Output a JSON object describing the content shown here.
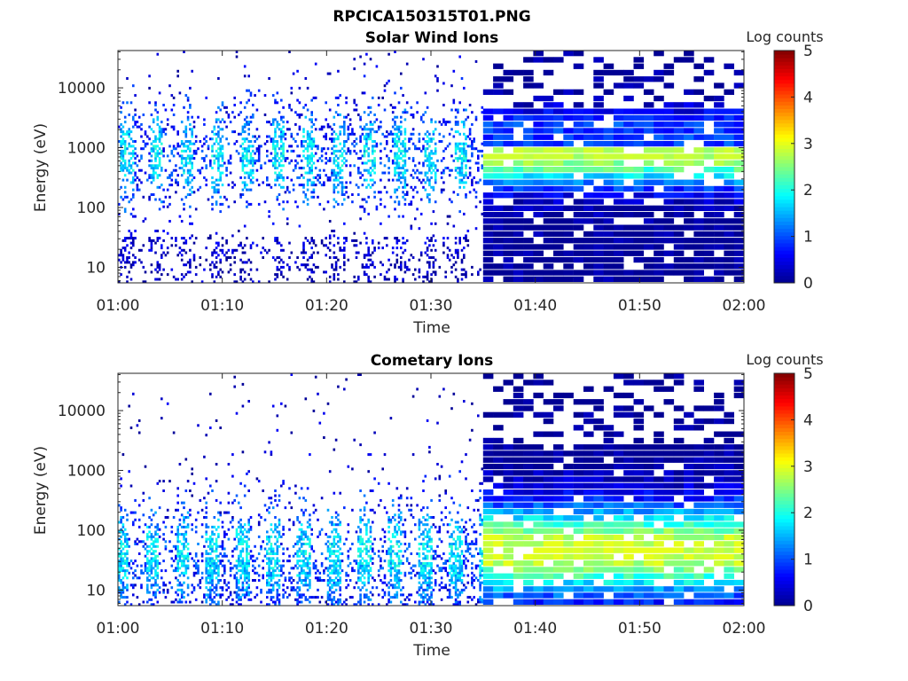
{
  "figure_title": "RPCICA150315T01.PNG",
  "colors": {
    "colormap": [
      "#00008f",
      "#0000ff",
      "#0080ff",
      "#00ffff",
      "#80ff80",
      "#ffff00",
      "#ff8000",
      "#ff0000",
      "#800000"
    ],
    "axis": "#262626",
    "background": "#ffffff"
  },
  "chart_data": [
    {
      "type": "heatmap",
      "title": "Solar Wind Ions",
      "xlabel": "Time",
      "ylabel": "Energy (eV)",
      "x_ticks": [
        "01:00",
        "01:10",
        "01:20",
        "01:30",
        "01:40",
        "01:50",
        "02:00"
      ],
      "xlim": [
        "01:00",
        "02:00"
      ],
      "y_scale": "log",
      "y_ticks": [
        10,
        100,
        1000,
        10000
      ],
      "y_tick_labels": [
        "10",
        "100",
        "1000",
        "10000"
      ],
      "ylim": [
        5.5,
        42000
      ],
      "colorbar": {
        "label": "Log counts",
        "range": [
          0,
          5
        ],
        "ticks": [
          0,
          1,
          2,
          3,
          4,
          5
        ]
      },
      "features": {
        "sparse_until": "01:35",
        "dense_from": "01:35",
        "peak_energy_eV": 700,
        "max_log_counts": 2.9
      }
    },
    {
      "type": "heatmap",
      "title": "Cometary Ions",
      "xlabel": "Time",
      "ylabel": "Energy (eV)",
      "x_ticks": [
        "01:00",
        "01:10",
        "01:20",
        "01:30",
        "01:40",
        "01:50",
        "02:00"
      ],
      "xlim": [
        "01:00",
        "02:00"
      ],
      "y_scale": "log",
      "y_ticks": [
        10,
        100,
        1000,
        10000
      ],
      "y_tick_labels": [
        "10",
        "100",
        "1000",
        "10000"
      ],
      "ylim": [
        5.5,
        42000
      ],
      "colorbar": {
        "label": "Log counts",
        "range": [
          0,
          5
        ],
        "ticks": [
          0,
          1,
          2,
          3,
          4,
          5
        ]
      },
      "features": {
        "sparse_until": "01:35",
        "dense_from": "01:35",
        "peak_energy_eV": 40,
        "max_log_counts": 3.0
      }
    }
  ]
}
